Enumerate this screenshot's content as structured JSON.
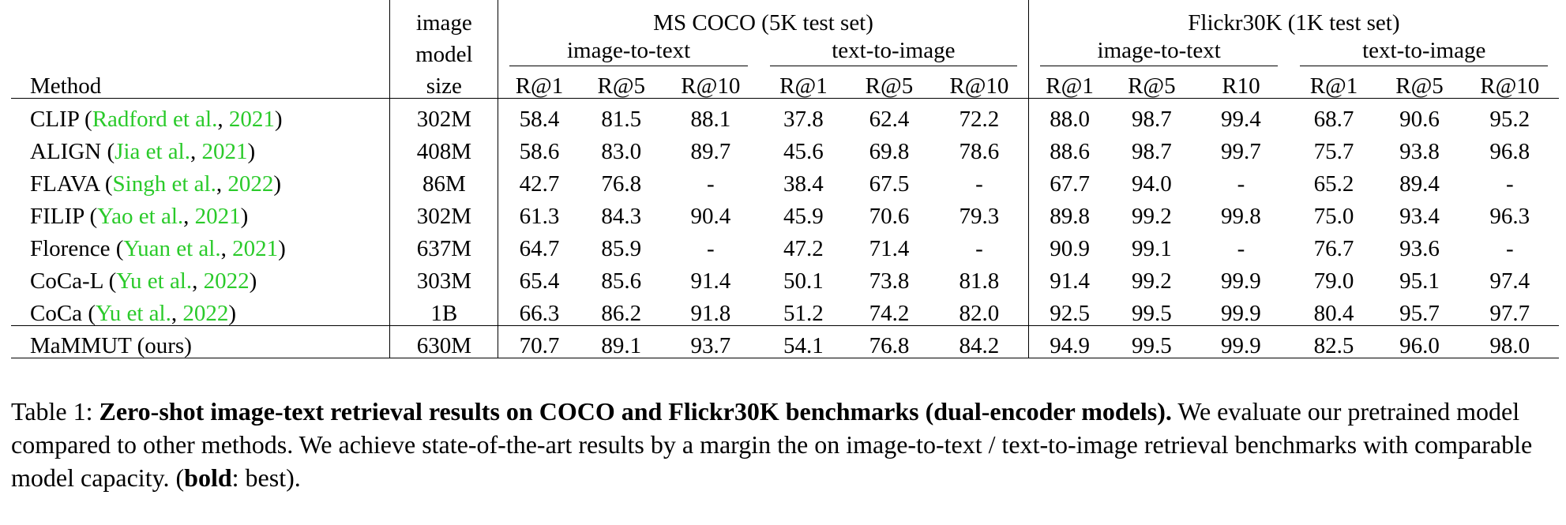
{
  "table": {
    "header": {
      "method": "Method",
      "size_lines": [
        "image",
        "model",
        "size"
      ],
      "datasets": [
        {
          "name": "MS COCO (5K test set)",
          "groups": [
            {
              "name": "image-to-text",
              "metrics": [
                "R@1",
                "R@5",
                "R@10"
              ]
            },
            {
              "name": "text-to-image",
              "metrics": [
                "R@1",
                "R@5",
                "R@10"
              ]
            }
          ]
        },
        {
          "name": "Flickr30K (1K test set)",
          "groups": [
            {
              "name": "image-to-text",
              "metrics": [
                "R@1",
                "R@5",
                "R10"
              ]
            },
            {
              "name": "text-to-image",
              "metrics": [
                "R@1",
                "R@5",
                "R@10"
              ]
            }
          ]
        }
      ]
    },
    "rows": [
      {
        "method": "CLIP",
        "cite_authors": "Radford et al.",
        "cite_year": "2021",
        "size": "302M",
        "values": [
          "58.4",
          "81.5",
          "88.1",
          "37.8",
          "62.4",
          "72.2",
          "88.0",
          "98.7",
          "99.4",
          "68.7",
          "90.6",
          "95.2"
        ],
        "bold": []
      },
      {
        "method": "ALIGN",
        "cite_authors": "Jia et al.",
        "cite_year": "2021",
        "size": "408M",
        "values": [
          "58.6",
          "83.0",
          "89.7",
          "45.6",
          "69.8",
          "78.6",
          "88.6",
          "98.7",
          "99.7",
          "75.7",
          "93.8",
          "96.8"
        ],
        "bold": []
      },
      {
        "method": "FLAVA",
        "cite_authors": "Singh et al.",
        "cite_year": "2022",
        "size": "86M",
        "values": [
          "42.7",
          "76.8",
          "-",
          "38.4",
          "67.5",
          "-",
          "67.7",
          "94.0",
          "-",
          "65.2",
          "89.4",
          "-"
        ],
        "bold": []
      },
      {
        "method": "FILIP",
        "cite_authors": "Yao et al.",
        "cite_year": "2021",
        "size": "302M",
        "values": [
          "61.3",
          "84.3",
          "90.4",
          "45.9",
          "70.6",
          "79.3",
          "89.8",
          "99.2",
          "99.8",
          "75.0",
          "93.4",
          "96.3"
        ],
        "bold": []
      },
      {
        "method": "Florence",
        "cite_authors": "Yuan et al.",
        "cite_year": "2021",
        "size": "637M",
        "values": [
          "64.7",
          "85.9",
          "-",
          "47.2",
          "71.4",
          "-",
          "90.9",
          "99.1",
          "-",
          "76.7",
          "93.6",
          "-"
        ],
        "bold": []
      },
      {
        "method": "CoCa-L",
        "cite_authors": "Yu et al.",
        "cite_year": "2022",
        "size": "303M",
        "values": [
          "65.4",
          "85.6",
          "91.4",
          "50.1",
          "73.8",
          "81.8",
          "91.4",
          "99.2",
          "99.9",
          "79.0",
          "95.1",
          "97.4"
        ],
        "bold": [
          8
        ]
      },
      {
        "method": "CoCa",
        "cite_authors": "Yu et al.",
        "cite_year": "2022",
        "size": "1B",
        "values": [
          "66.3",
          "86.2",
          "91.8",
          "51.2",
          "74.2",
          "82.0",
          "92.5",
          "99.5",
          "99.9",
          "80.4",
          "95.7",
          "97.7"
        ],
        "bold": [
          8
        ]
      }
    ],
    "ours": {
      "method": "MaMMUT (ours)",
      "size": "630M",
      "values": [
        "70.7",
        "89.1",
        "93.7",
        "54.1",
        "76.8",
        "84.2",
        "94.9",
        "99.5",
        "99.9",
        "82.5",
        "96.0",
        "98.0"
      ]
    }
  },
  "caption": {
    "label": "Table 1:",
    "title": "Zero-shot image-text retrieval results on COCO and Flickr30K benchmarks (dual-encoder models).",
    "body_part1": "We evaluate our pretrained model compared to other methods. We achieve state-of-the-art results by a margin the on image-to-text / text-to-image retrieval benchmarks with comparable model capacity. (",
    "bold_word": "bold",
    "body_part2": ": best)."
  },
  "colors": {
    "citation": "#2aca2a"
  }
}
